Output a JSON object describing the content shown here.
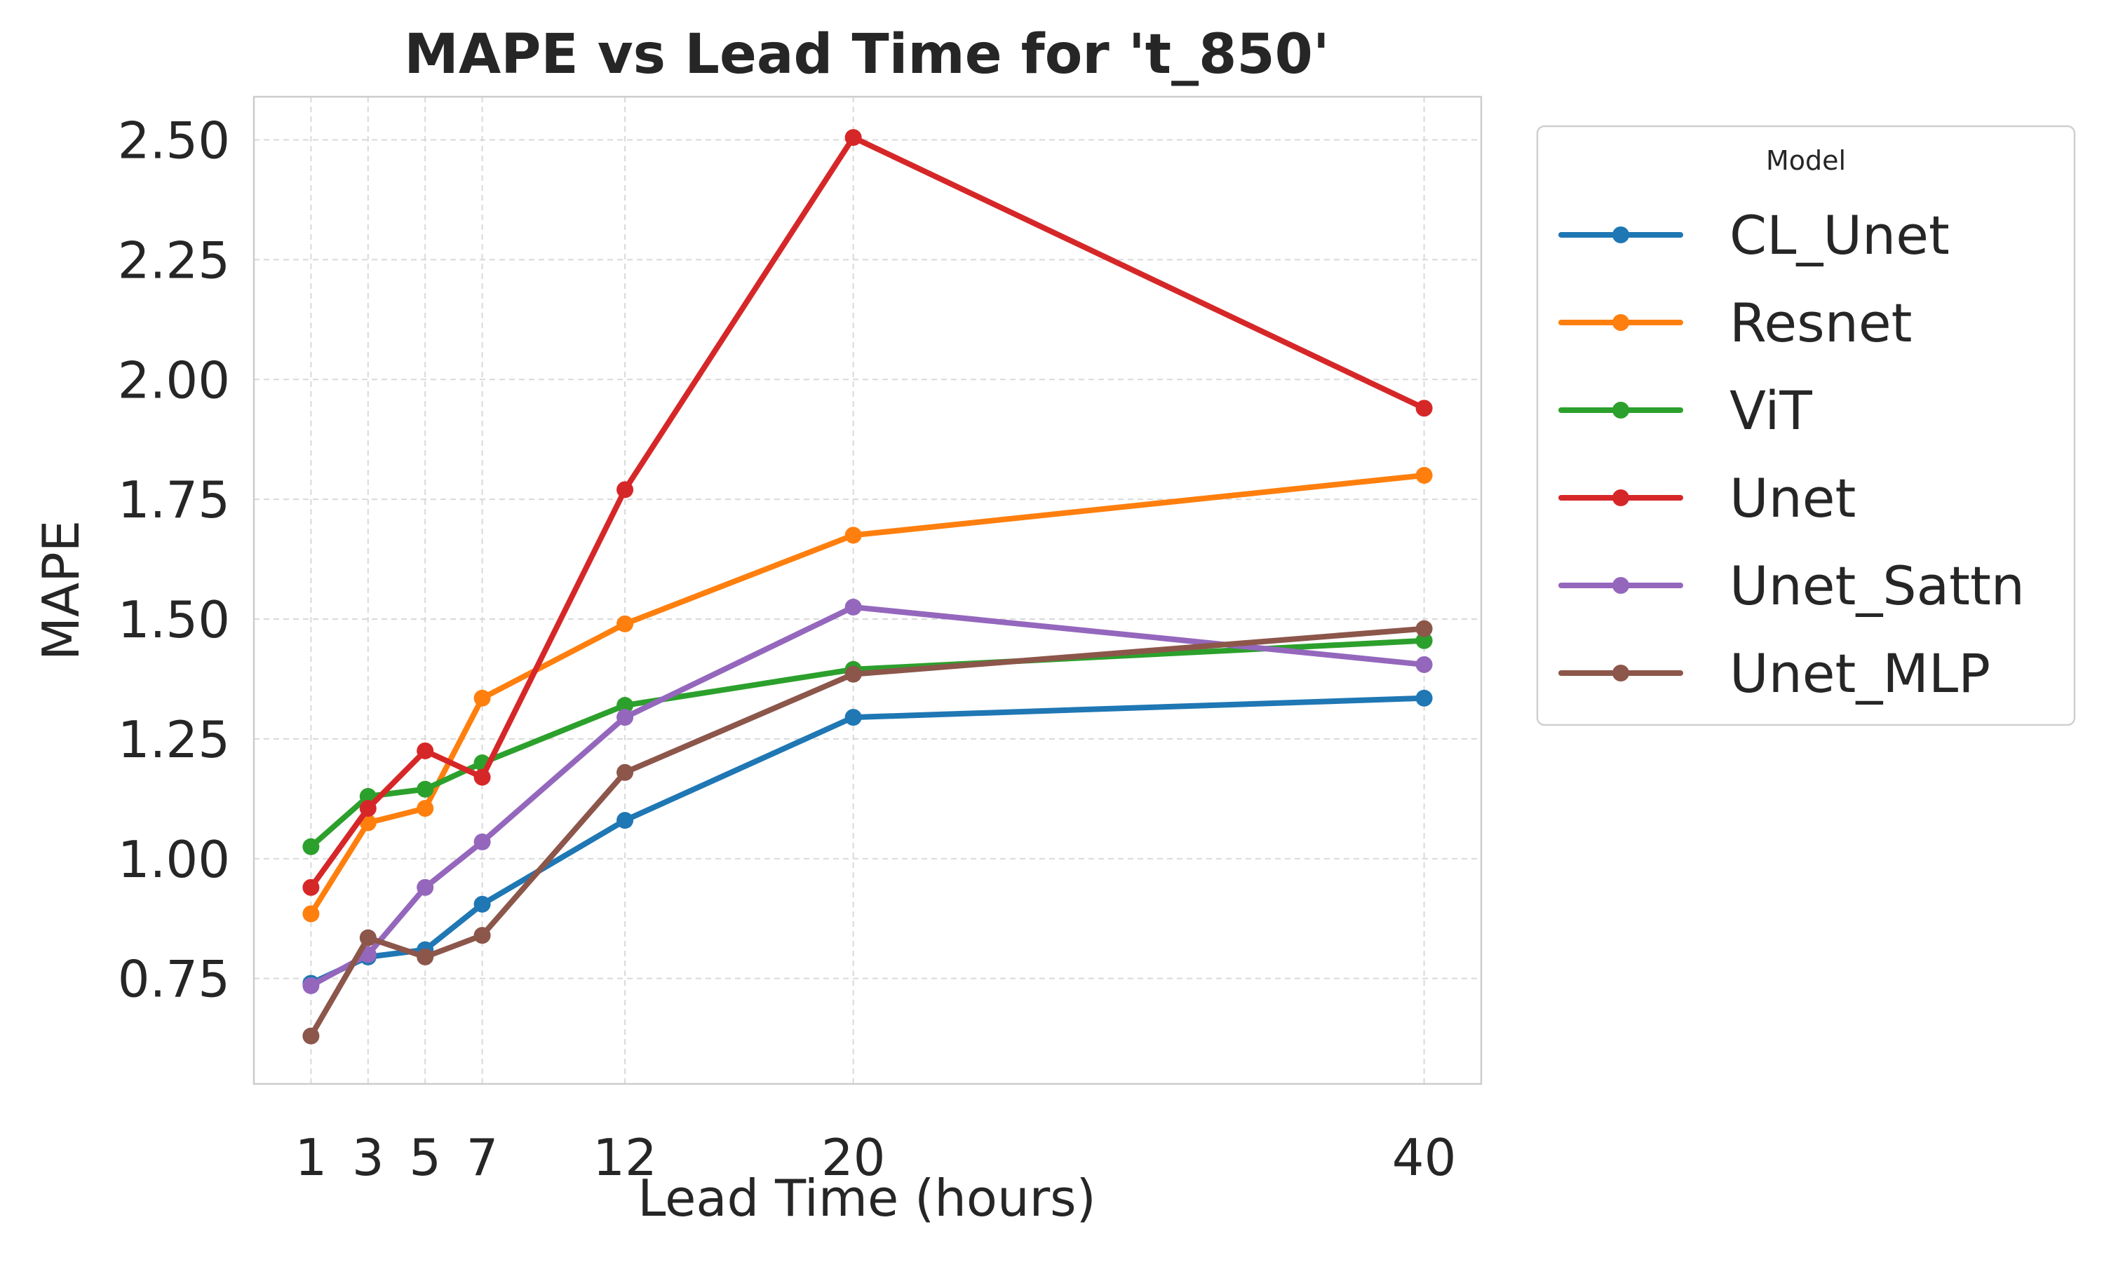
{
  "chart_data": {
    "type": "line",
    "title": "MAPE vs Lead Time for 't_850'",
    "xlabel": "Lead Time (hours)",
    "ylabel": "MAPE",
    "x": [
      1,
      3,
      5,
      7,
      12,
      20,
      40
    ],
    "xticks": [
      "1",
      "3",
      "5",
      "7",
      "12",
      "20",
      "40"
    ],
    "xlim": [
      -1,
      42
    ],
    "ylim": [
      0.53,
      2.59
    ],
    "yticks": [
      "0.75",
      "1.00",
      "1.25",
      "1.50",
      "1.75",
      "2.00",
      "2.25",
      "2.50"
    ],
    "grid": true,
    "legend_title": "Model",
    "legend_position": "outside-right",
    "series": [
      {
        "name": "CL_Unet",
        "color": "#1f77b4",
        "values": [
          0.74,
          0.795,
          0.81,
          0.905,
          1.08,
          1.295,
          1.335
        ]
      },
      {
        "name": "Resnet",
        "color": "#ff7f0e",
        "values": [
          0.885,
          1.075,
          1.105,
          1.335,
          1.49,
          1.675,
          1.8
        ]
      },
      {
        "name": "ViT",
        "color": "#2ca02c",
        "values": [
          1.025,
          1.13,
          1.145,
          1.2,
          1.32,
          1.395,
          1.455
        ]
      },
      {
        "name": "Unet",
        "color": "#d62728",
        "values": [
          0.94,
          1.105,
          1.225,
          1.17,
          1.77,
          2.505,
          1.94
        ]
      },
      {
        "name": "Unet_Sattn",
        "color": "#9467bd",
        "values": [
          0.735,
          0.8,
          0.94,
          1.035,
          1.295,
          1.525,
          1.405
        ]
      },
      {
        "name": "Unet_MLP",
        "color": "#8c564b",
        "values": [
          0.63,
          0.835,
          0.795,
          0.84,
          1.18,
          1.385,
          1.48
        ]
      }
    ]
  }
}
